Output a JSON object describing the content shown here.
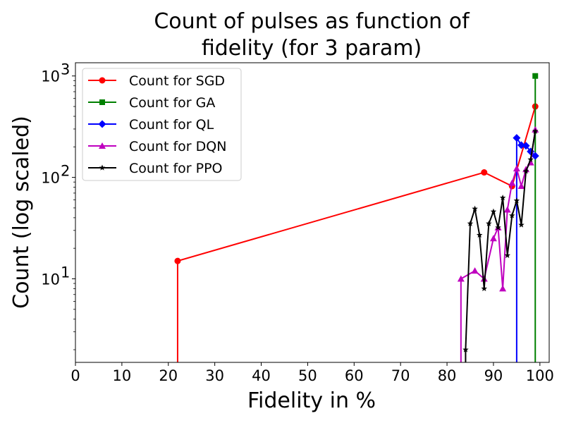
{
  "chart_data": {
    "type": "line",
    "title_lines": [
      "Count of pulses as function of",
      "fidelity (for 3 param)"
    ],
    "xlabel": "Fidelity in %",
    "ylabel": "Count (log scaled)",
    "xlim": [
      0,
      102
    ],
    "ylim": [
      1.5,
      1350
    ],
    "yscale": "log",
    "xticks": [
      "0",
      "10",
      "20",
      "30",
      "40",
      "50",
      "60",
      "70",
      "80",
      "90",
      "100"
    ],
    "yticks": [
      {
        "value": 10,
        "base": "10",
        "exp": "1"
      },
      {
        "value": 100,
        "base": "10",
        "exp": "2"
      },
      {
        "value": 1000,
        "base": "10",
        "exp": "3"
      }
    ],
    "legend_position": "upper-left",
    "series": [
      {
        "name": "Count for SGD",
        "color": "#ff0000",
        "marker": "circle",
        "x": [
          22,
          88,
          94,
          99
        ],
        "values": [
          15,
          112,
          82,
          500
        ]
      },
      {
        "name": "Count for GA",
        "color": "#008000",
        "marker": "square",
        "x": [
          99
        ],
        "values": [
          1000
        ]
      },
      {
        "name": "Count for QL",
        "color": "#0000ff",
        "marker": "diamond",
        "x": [
          95,
          96,
          97,
          98,
          99
        ],
        "values": [
          245,
          208,
          205,
          180,
          163
        ]
      },
      {
        "name": "Count for DQN",
        "color": "#bf00bf",
        "marker": "triangle",
        "x": [
          83,
          86,
          88,
          90,
          91,
          92,
          93,
          94,
          95,
          96,
          97,
          98,
          99
        ],
        "values": [
          10,
          12,
          10,
          25,
          32,
          8,
          48,
          88,
          122,
          82,
          120,
          140,
          295
        ]
      },
      {
        "name": "Count for PPO",
        "color": "#000000",
        "marker": "star",
        "x": [
          84,
          85,
          86,
          87,
          88,
          89,
          90,
          91,
          92,
          93,
          94,
          95,
          96,
          97,
          98,
          99
        ],
        "values": [
          2,
          35,
          49,
          27,
          8,
          35,
          46,
          32,
          63,
          17,
          42,
          59,
          34,
          115,
          150,
          285
        ]
      }
    ]
  }
}
